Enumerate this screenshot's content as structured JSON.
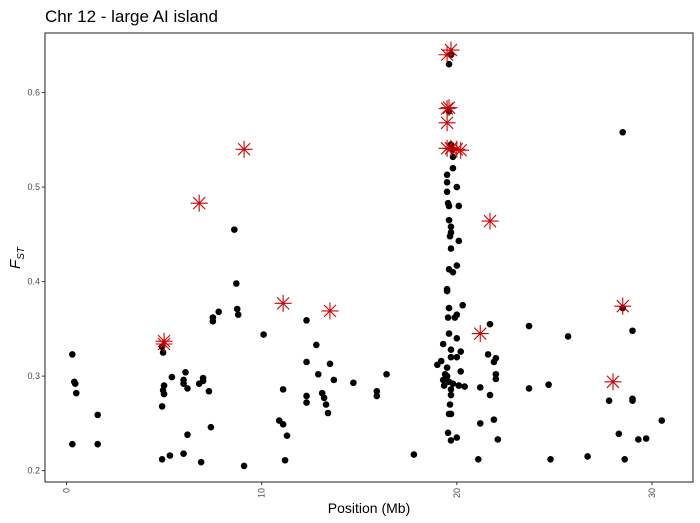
{
  "chart_data": {
    "type": "scatter",
    "title": "Chr 12 - large AI island",
    "xlabel": "Position (Mb)",
    "ylabel": {
      "main": "F",
      "sub": "ST"
    },
    "xlim": [
      -1.1,
      32.1
    ],
    "ylim": [
      0.188,
      0.663
    ],
    "x_ticks": [
      0,
      10,
      20,
      30
    ],
    "y_ticks": [
      0.2,
      0.3,
      0.4,
      0.5,
      0.6
    ],
    "grid": false,
    "legend": "none",
    "colors": {
      "points": "#000000",
      "outliers": "#cc0000"
    },
    "series": [
      {
        "marker": "dot",
        "points": [
          [
            0.3,
            0.323
          ],
          [
            0.4,
            0.294
          ],
          [
            0.45,
            0.292
          ],
          [
            0.5,
            0.282
          ],
          [
            0.3,
            0.228
          ],
          [
            1.6,
            0.259
          ],
          [
            1.6,
            0.228
          ],
          [
            4.9,
            0.331
          ],
          [
            4.95,
            0.325
          ],
          [
            5.0,
            0.29
          ],
          [
            4.95,
            0.285
          ],
          [
            5.0,
            0.281
          ],
          [
            4.9,
            0.268
          ],
          [
            4.9,
            0.212
          ],
          [
            5.3,
            0.216
          ],
          [
            5.4,
            0.299
          ],
          [
            6.0,
            0.292
          ],
          [
            6.0,
            0.218
          ],
          [
            6.0,
            0.296
          ],
          [
            6.1,
            0.304
          ],
          [
            6.2,
            0.287
          ],
          [
            6.2,
            0.238
          ],
          [
            6.9,
            0.209
          ],
          [
            6.8,
            0.292
          ],
          [
            7.0,
            0.295
          ],
          [
            7.0,
            0.298
          ],
          [
            7.3,
            0.284
          ],
          [
            7.4,
            0.246
          ],
          [
            7.5,
            0.362
          ],
          [
            7.5,
            0.358
          ],
          [
            7.8,
            0.368
          ],
          [
            8.6,
            0.455
          ],
          [
            8.7,
            0.398
          ],
          [
            8.75,
            0.371
          ],
          [
            8.8,
            0.365
          ],
          [
            9.1,
            0.205
          ],
          [
            10.1,
            0.344
          ],
          [
            10.9,
            0.253
          ],
          [
            11.1,
            0.286
          ],
          [
            11.1,
            0.249
          ],
          [
            11.2,
            0.211
          ],
          [
            11.3,
            0.237
          ],
          [
            12.3,
            0.359
          ],
          [
            12.3,
            0.315
          ],
          [
            12.3,
            0.279
          ],
          [
            12.3,
            0.272
          ],
          [
            12.8,
            0.333
          ],
          [
            12.9,
            0.302
          ],
          [
            13.1,
            0.282
          ],
          [
            13.2,
            0.277
          ],
          [
            13.3,
            0.27
          ],
          [
            13.4,
            0.261
          ],
          [
            13.5,
            0.313
          ],
          [
            13.7,
            0.296
          ],
          [
            14.7,
            0.293
          ],
          [
            15.9,
            0.284
          ],
          [
            15.9,
            0.279
          ],
          [
            16.4,
            0.302
          ],
          [
            17.8,
            0.217
          ],
          [
            19.0,
            0.312
          ],
          [
            19.2,
            0.316
          ],
          [
            19.3,
            0.334
          ],
          [
            19.3,
            0.296
          ],
          [
            19.35,
            0.29
          ],
          [
            19.4,
            0.302
          ],
          [
            19.5,
            0.505
          ],
          [
            19.5,
            0.513
          ],
          [
            19.5,
            0.495
          ],
          [
            19.6,
            0.48
          ],
          [
            19.55,
            0.483
          ],
          [
            19.6,
            0.465
          ],
          [
            19.7,
            0.458
          ],
          [
            19.7,
            0.452
          ],
          [
            19.65,
            0.448
          ],
          [
            19.7,
            0.435
          ],
          [
            19.6,
            0.413
          ],
          [
            19.5,
            0.39
          ],
          [
            19.5,
            0.392
          ],
          [
            19.6,
            0.372
          ],
          [
            19.55,
            0.362
          ],
          [
            19.6,
            0.345
          ],
          [
            19.7,
            0.328
          ],
          [
            19.7,
            0.32
          ],
          [
            19.5,
            0.309
          ],
          [
            19.5,
            0.3
          ],
          [
            19.6,
            0.294
          ],
          [
            19.7,
            0.28
          ],
          [
            19.65,
            0.27
          ],
          [
            19.6,
            0.26
          ],
          [
            19.55,
            0.24
          ],
          [
            19.7,
            0.232
          ],
          [
            19.7,
            0.286
          ],
          [
            19.8,
            0.292
          ],
          [
            19.7,
            0.26
          ],
          [
            19.6,
            0.63
          ],
          [
            19.7,
            0.64
          ],
          [
            19.6,
            0.58
          ],
          [
            19.7,
            0.545
          ],
          [
            19.75,
            0.54
          ],
          [
            19.8,
            0.532
          ],
          [
            19.8,
            0.52
          ],
          [
            19.8,
            0.41
          ],
          [
            19.9,
            0.362
          ],
          [
            20.0,
            0.365
          ],
          [
            20.0,
            0.417
          ],
          [
            20.0,
            0.5
          ],
          [
            20.1,
            0.48
          ],
          [
            20.1,
            0.443
          ],
          [
            20.0,
            0.34
          ],
          [
            20.0,
            0.32
          ],
          [
            20.2,
            0.326
          ],
          [
            20.2,
            0.305
          ],
          [
            20.1,
            0.29
          ],
          [
            20.0,
            0.235
          ],
          [
            20.3,
            0.375
          ],
          [
            20.1,
            0.29
          ],
          [
            20.4,
            0.289
          ],
          [
            21.1,
            0.212
          ],
          [
            21.2,
            0.25
          ],
          [
            21.2,
            0.288
          ],
          [
            21.6,
            0.323
          ],
          [
            21.7,
            0.355
          ],
          [
            21.7,
            0.28
          ],
          [
            21.9,
            0.315
          ],
          [
            22.0,
            0.319
          ],
          [
            22.0,
            0.302
          ],
          [
            22.0,
            0.297
          ],
          [
            21.9,
            0.254
          ],
          [
            22.1,
            0.233
          ],
          [
            23.7,
            0.353
          ],
          [
            23.7,
            0.287
          ],
          [
            24.7,
            0.291
          ],
          [
            24.8,
            0.212
          ],
          [
            25.7,
            0.342
          ],
          [
            26.7,
            0.215
          ],
          [
            27.8,
            0.274
          ],
          [
            28.3,
            0.239
          ],
          [
            28.5,
            0.372
          ],
          [
            28.5,
            0.558
          ],
          [
            28.6,
            0.212
          ],
          [
            29.0,
            0.348
          ],
          [
            29.0,
            0.276
          ],
          [
            29.0,
            0.274
          ],
          [
            29.3,
            0.233
          ],
          [
            29.7,
            0.234
          ],
          [
            30.5,
            0.253
          ]
        ]
      },
      {
        "marker": "star",
        "points": [
          [
            5.0,
            0.337
          ],
          [
            5.0,
            0.334
          ],
          [
            6.8,
            0.483
          ],
          [
            9.1,
            0.54
          ],
          [
            11.1,
            0.377
          ],
          [
            13.5,
            0.369
          ],
          [
            19.5,
            0.64
          ],
          [
            19.7,
            0.645
          ],
          [
            19.5,
            0.583
          ],
          [
            19.6,
            0.584
          ],
          [
            19.5,
            0.568
          ],
          [
            19.5,
            0.541
          ],
          [
            19.7,
            0.541
          ],
          [
            20.0,
            0.54
          ],
          [
            20.2,
            0.539
          ],
          [
            21.2,
            0.345
          ],
          [
            21.7,
            0.464
          ],
          [
            28.0,
            0.294
          ],
          [
            28.5,
            0.374
          ]
        ]
      }
    ]
  }
}
